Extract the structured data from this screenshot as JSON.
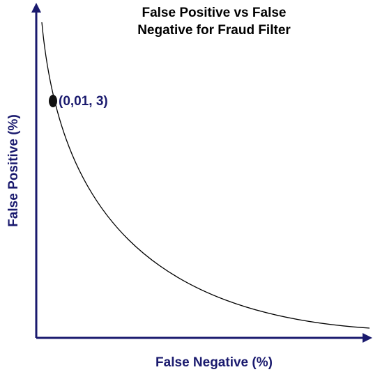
{
  "chart_data": {
    "type": "curve",
    "title": "False Positive vs False Negative for Fraud Filter",
    "x_label": "False Negative (%)",
    "y_label": "False Positive (%)",
    "annotation": "(0,01, 3)"
  }
}
